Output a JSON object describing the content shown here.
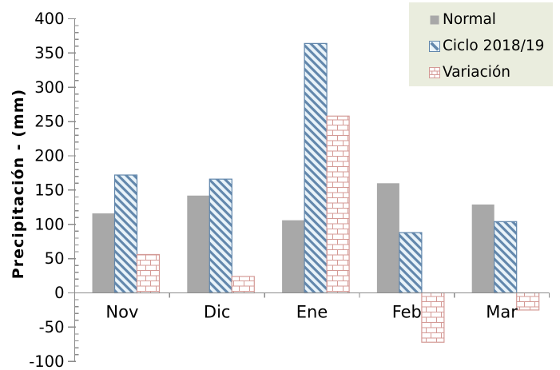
{
  "chart_data": {
    "type": "bar",
    "title": "",
    "ylabel": "Precipitación - (mm)",
    "xlabel": "",
    "categories": [
      "Nov",
      "Dic",
      "Ene",
      "Feb",
      "Mar"
    ],
    "series": [
      {
        "name": "Normal",
        "swatch": "solid-gray",
        "color": "#a8a8a8",
        "fill": "#a8a8a8",
        "values": [
          116,
          142,
          106,
          160,
          129
        ]
      },
      {
        "name": "Ciclo 2018/19",
        "swatch": "diagonal-stripes",
        "color": "#6287ac",
        "fill": "#e9f3f9",
        "values": [
          172,
          166,
          364,
          88,
          104
        ]
      },
      {
        "name": "Variación",
        "swatch": "bricks",
        "color": "#d49a96",
        "fill": "#ffffff",
        "values": [
          56,
          24,
          258,
          -72,
          -25
        ]
      }
    ],
    "ylim": [
      -100,
      400
    ],
    "y_major_ticks": [
      400,
      350,
      300,
      250,
      200,
      150,
      100,
      50,
      0,
      -50,
      -100
    ],
    "y_minor_step": 10,
    "grid": false,
    "legend_position": "top-right",
    "colors": {
      "legend_bg": "#eaedde",
      "axis": "#8b8b8b",
      "text": "#000000",
      "plot_bg": "#ffffff"
    }
  }
}
